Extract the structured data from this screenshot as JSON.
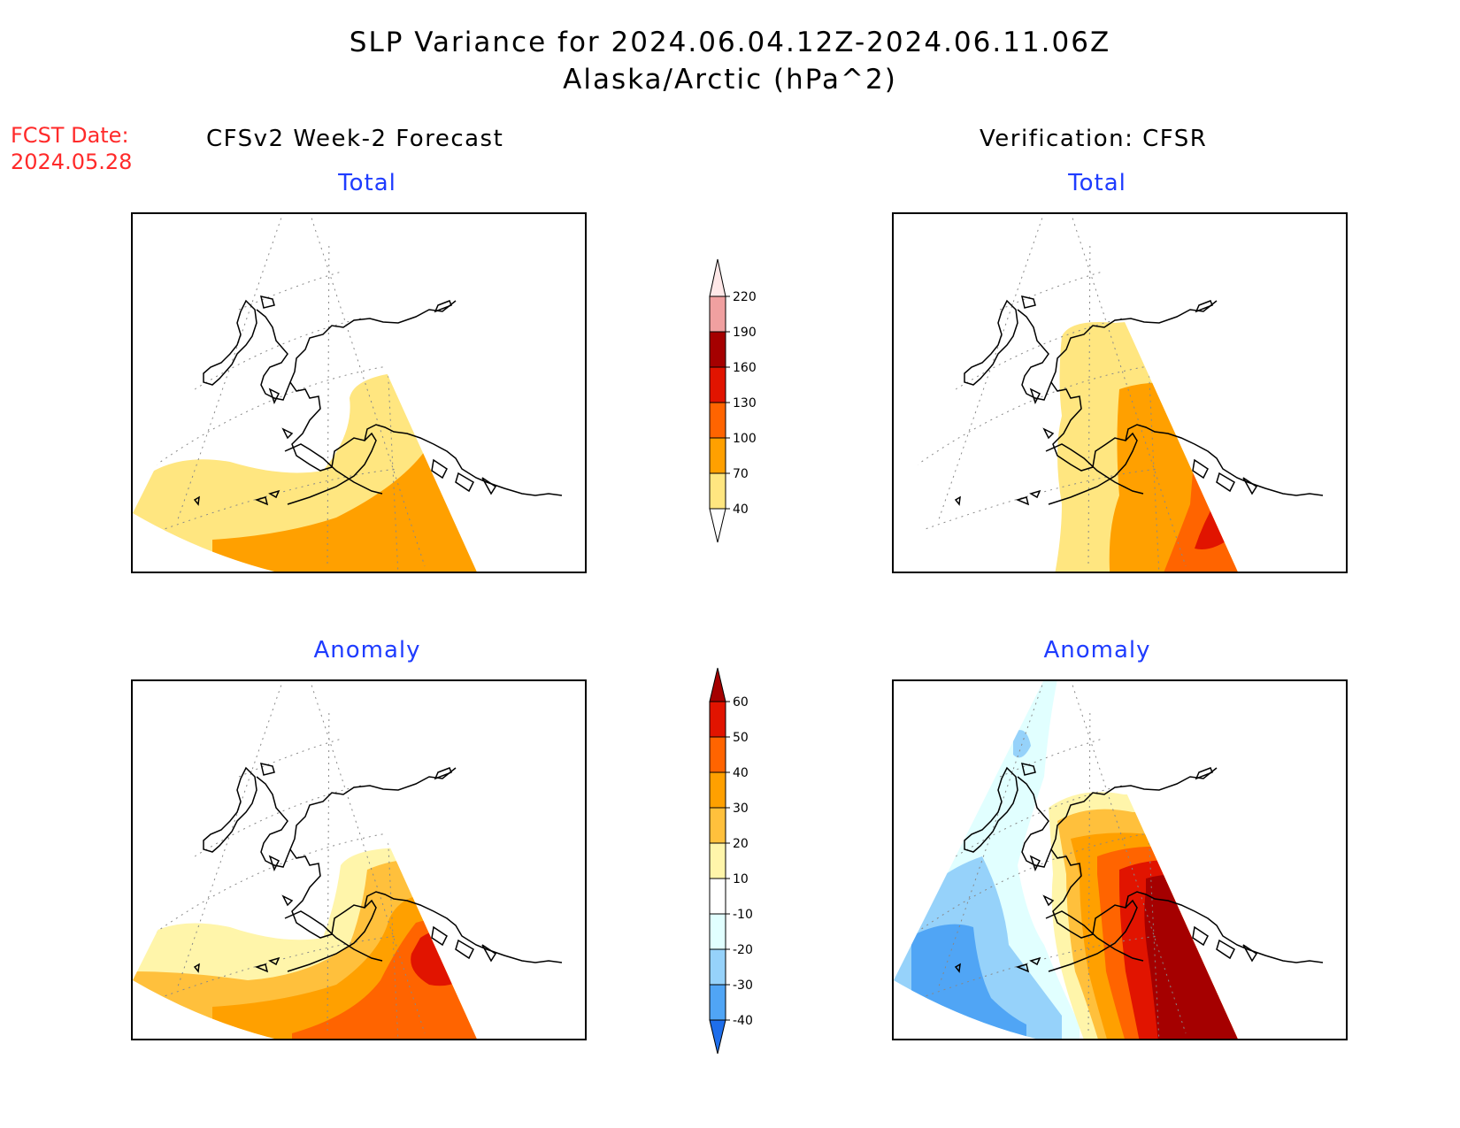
{
  "header": {
    "title_line1": "SLP Variance for 2024.06.04.12Z-2024.06.11.06Z",
    "title_line2": "Alaska/Arctic (hPa^2)",
    "fcst_label": "FCST Date:",
    "fcst_date": "2024.05.28",
    "left_column_title": "CFSv2 Week-2 Forecast",
    "right_column_title": "Verification: CFSR"
  },
  "panels": {
    "top_left_label": "Total",
    "top_right_label": "Total",
    "bottom_left_label": "Anomaly",
    "bottom_right_label": "Anomaly"
  },
  "colorbar_total": {
    "levels": [
      "40",
      "70",
      "100",
      "130",
      "160",
      "190",
      "220"
    ],
    "colors": [
      "#ffe680",
      "#ffa000",
      "#ff6400",
      "#e11400",
      "#a50000",
      "#f0a0a0",
      "#ffe8e8"
    ]
  },
  "colorbar_anomaly": {
    "levels": [
      "-40",
      "-30",
      "-20",
      "-10",
      "10",
      "20",
      "30",
      "40",
      "50",
      "60"
    ],
    "colors": [
      "#1e6eeb",
      "#50a5f5",
      "#96d2fa",
      "#e1ffff",
      "#ffffff",
      "#fff5aa",
      "#ffc03c",
      "#ffa000",
      "#ff6400",
      "#e11400",
      "#a50000"
    ]
  }
}
